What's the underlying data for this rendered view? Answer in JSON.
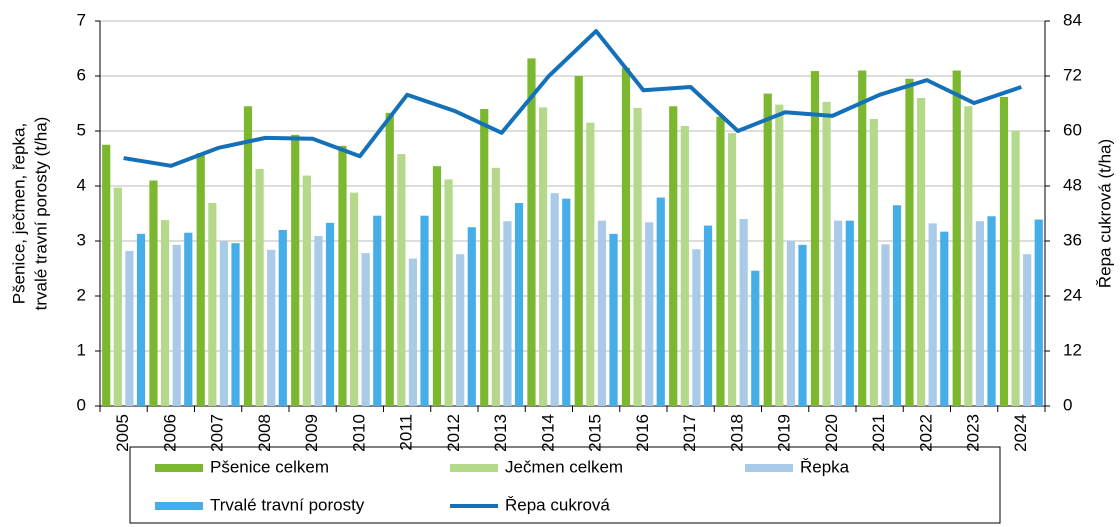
{
  "chart_data": {
    "type": "bar",
    "categories": [
      "2005",
      "2006",
      "2007",
      "2008",
      "2009",
      "2010",
      "2011",
      "2012",
      "2013",
      "2014",
      "2015",
      "2016",
      "2017",
      "2018",
      "2019",
      "2020",
      "2021",
      "2022",
      "2023",
      "2024"
    ],
    "series": [
      {
        "name": "Pšenice celkem",
        "color": "#7cb82f",
        "values": [
          4.75,
          4.1,
          4.6,
          5.45,
          4.93,
          4.73,
          5.33,
          4.36,
          5.4,
          6.32,
          6.0,
          6.15,
          5.45,
          5.26,
          5.68,
          6.09,
          6.1,
          5.95,
          6.1,
          5.62
        ]
      },
      {
        "name": "Ječmen celkem",
        "color": "#b5d98a",
        "values": [
          3.97,
          3.38,
          3.69,
          4.31,
          4.19,
          3.88,
          4.58,
          4.12,
          4.33,
          5.43,
          5.15,
          5.42,
          5.09,
          4.96,
          5.48,
          5.53,
          5.22,
          5.6,
          5.45,
          5.0
        ]
      },
      {
        "name": "Řepka",
        "color": "#a9cbe8",
        "values": [
          2.82,
          2.93,
          2.99,
          2.84,
          3.09,
          2.78,
          2.68,
          2.76,
          3.36,
          3.87,
          3.37,
          3.34,
          2.85,
          3.4,
          3.01,
          3.37,
          2.94,
          3.32,
          3.36,
          2.76
        ]
      },
      {
        "name": "Trvalé travní porosty",
        "color": "#45aee8",
        "values": [
          3.13,
          3.15,
          2.96,
          3.2,
          3.33,
          3.46,
          3.46,
          3.25,
          3.69,
          3.77,
          3.13,
          3.79,
          3.28,
          2.46,
          2.93,
          3.37,
          3.65,
          3.17,
          3.45,
          3.39
        ]
      },
      {
        "name": "Řepa cukrová",
        "color": "#1470b8",
        "type": "line",
        "axis": "y2",
        "values": [
          54.1,
          52.4,
          56.3,
          58.5,
          58.3,
          54.5,
          67.9,
          64.4,
          59.6,
          72.0,
          81.8,
          68.9,
          69.6,
          60.0,
          64.1,
          63.3,
          67.9,
          71.1,
          66.1,
          69.6
        ]
      }
    ],
    "ylabel": [
      "Pšenice, ječmen, řepka,",
      "trvalé travní porosty  (t/ha)"
    ],
    "y2label": "Řepa cukrová  (t/ha)",
    "ylim": [
      0,
      7
    ],
    "yticks": [
      0,
      1,
      2,
      3,
      4,
      5,
      6,
      7
    ],
    "y2lim": [
      0,
      84
    ],
    "y2ticks": [
      0,
      12,
      24,
      36,
      48,
      60,
      72,
      84
    ],
    "grid": true,
    "legend": "bottom"
  }
}
